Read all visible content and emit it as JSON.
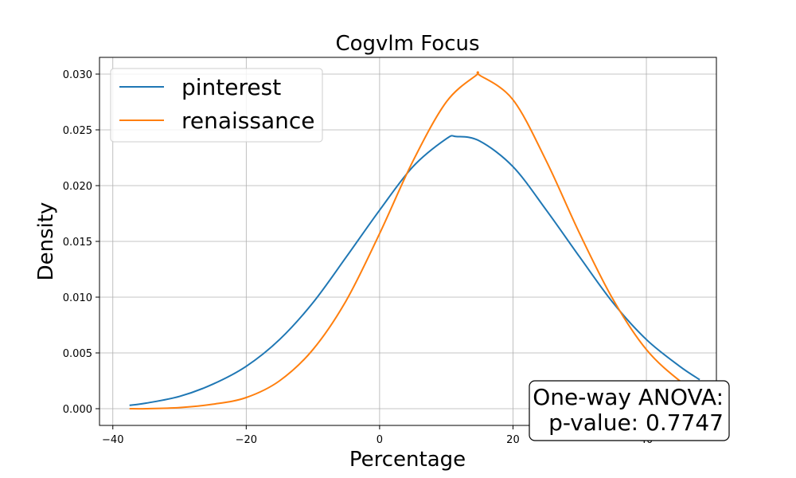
{
  "chart_data": {
    "type": "line",
    "title": "Cogvlm Focus",
    "xlabel": "Percentage",
    "ylabel": "Density",
    "xlim": [
      -42,
      50.5
    ],
    "ylim": [
      -0.0015,
      0.0315
    ],
    "xticks": [
      -40,
      -20,
      0,
      20,
      40
    ],
    "xtick_labels": [
      "−40",
      "−20",
      "0",
      "20",
      "40"
    ],
    "yticks": [
      0.0,
      0.005,
      0.01,
      0.015,
      0.02,
      0.025,
      0.03
    ],
    "ytick_labels": [
      "0.000",
      "0.005",
      "0.010",
      "0.015",
      "0.020",
      "0.025",
      "0.030"
    ],
    "grid": true,
    "legend_position": "top-left",
    "series": [
      {
        "name": "pinterest",
        "color": "#1f77b4",
        "x": [
          -37.5,
          -35,
          -30,
          -25,
          -20,
          -15,
          -10,
          -5,
          0,
          5,
          10,
          11.5,
          15,
          20,
          25,
          30,
          35,
          40,
          45,
          48
        ],
        "values": [
          0.0003,
          0.0005,
          0.0011,
          0.0022,
          0.0038,
          0.0062,
          0.0095,
          0.0136,
          0.0178,
          0.0217,
          0.0242,
          0.0244,
          0.024,
          0.0217,
          0.0178,
          0.0136,
          0.0095,
          0.0062,
          0.0038,
          0.0026
        ]
      },
      {
        "name": "renaissance",
        "color": "#ff7f0e",
        "x": [
          -37.5,
          -35,
          -30,
          -25,
          -20,
          -15,
          -10,
          -5,
          0,
          5,
          10,
          14.5,
          15,
          20,
          25,
          30,
          35,
          40,
          45,
          48
        ],
        "values": [
          0.0,
          0.0,
          0.0001,
          0.0004,
          0.001,
          0.0025,
          0.0053,
          0.0097,
          0.0157,
          0.0222,
          0.0275,
          0.0299,
          0.0299,
          0.0277,
          0.0222,
          0.0157,
          0.0098,
          0.0053,
          0.0025,
          0.0015
        ]
      }
    ],
    "annotation": {
      "line1": "One-way ANOVA:",
      "line2": "p-value: 0.7747",
      "position": "bottom-right"
    }
  }
}
